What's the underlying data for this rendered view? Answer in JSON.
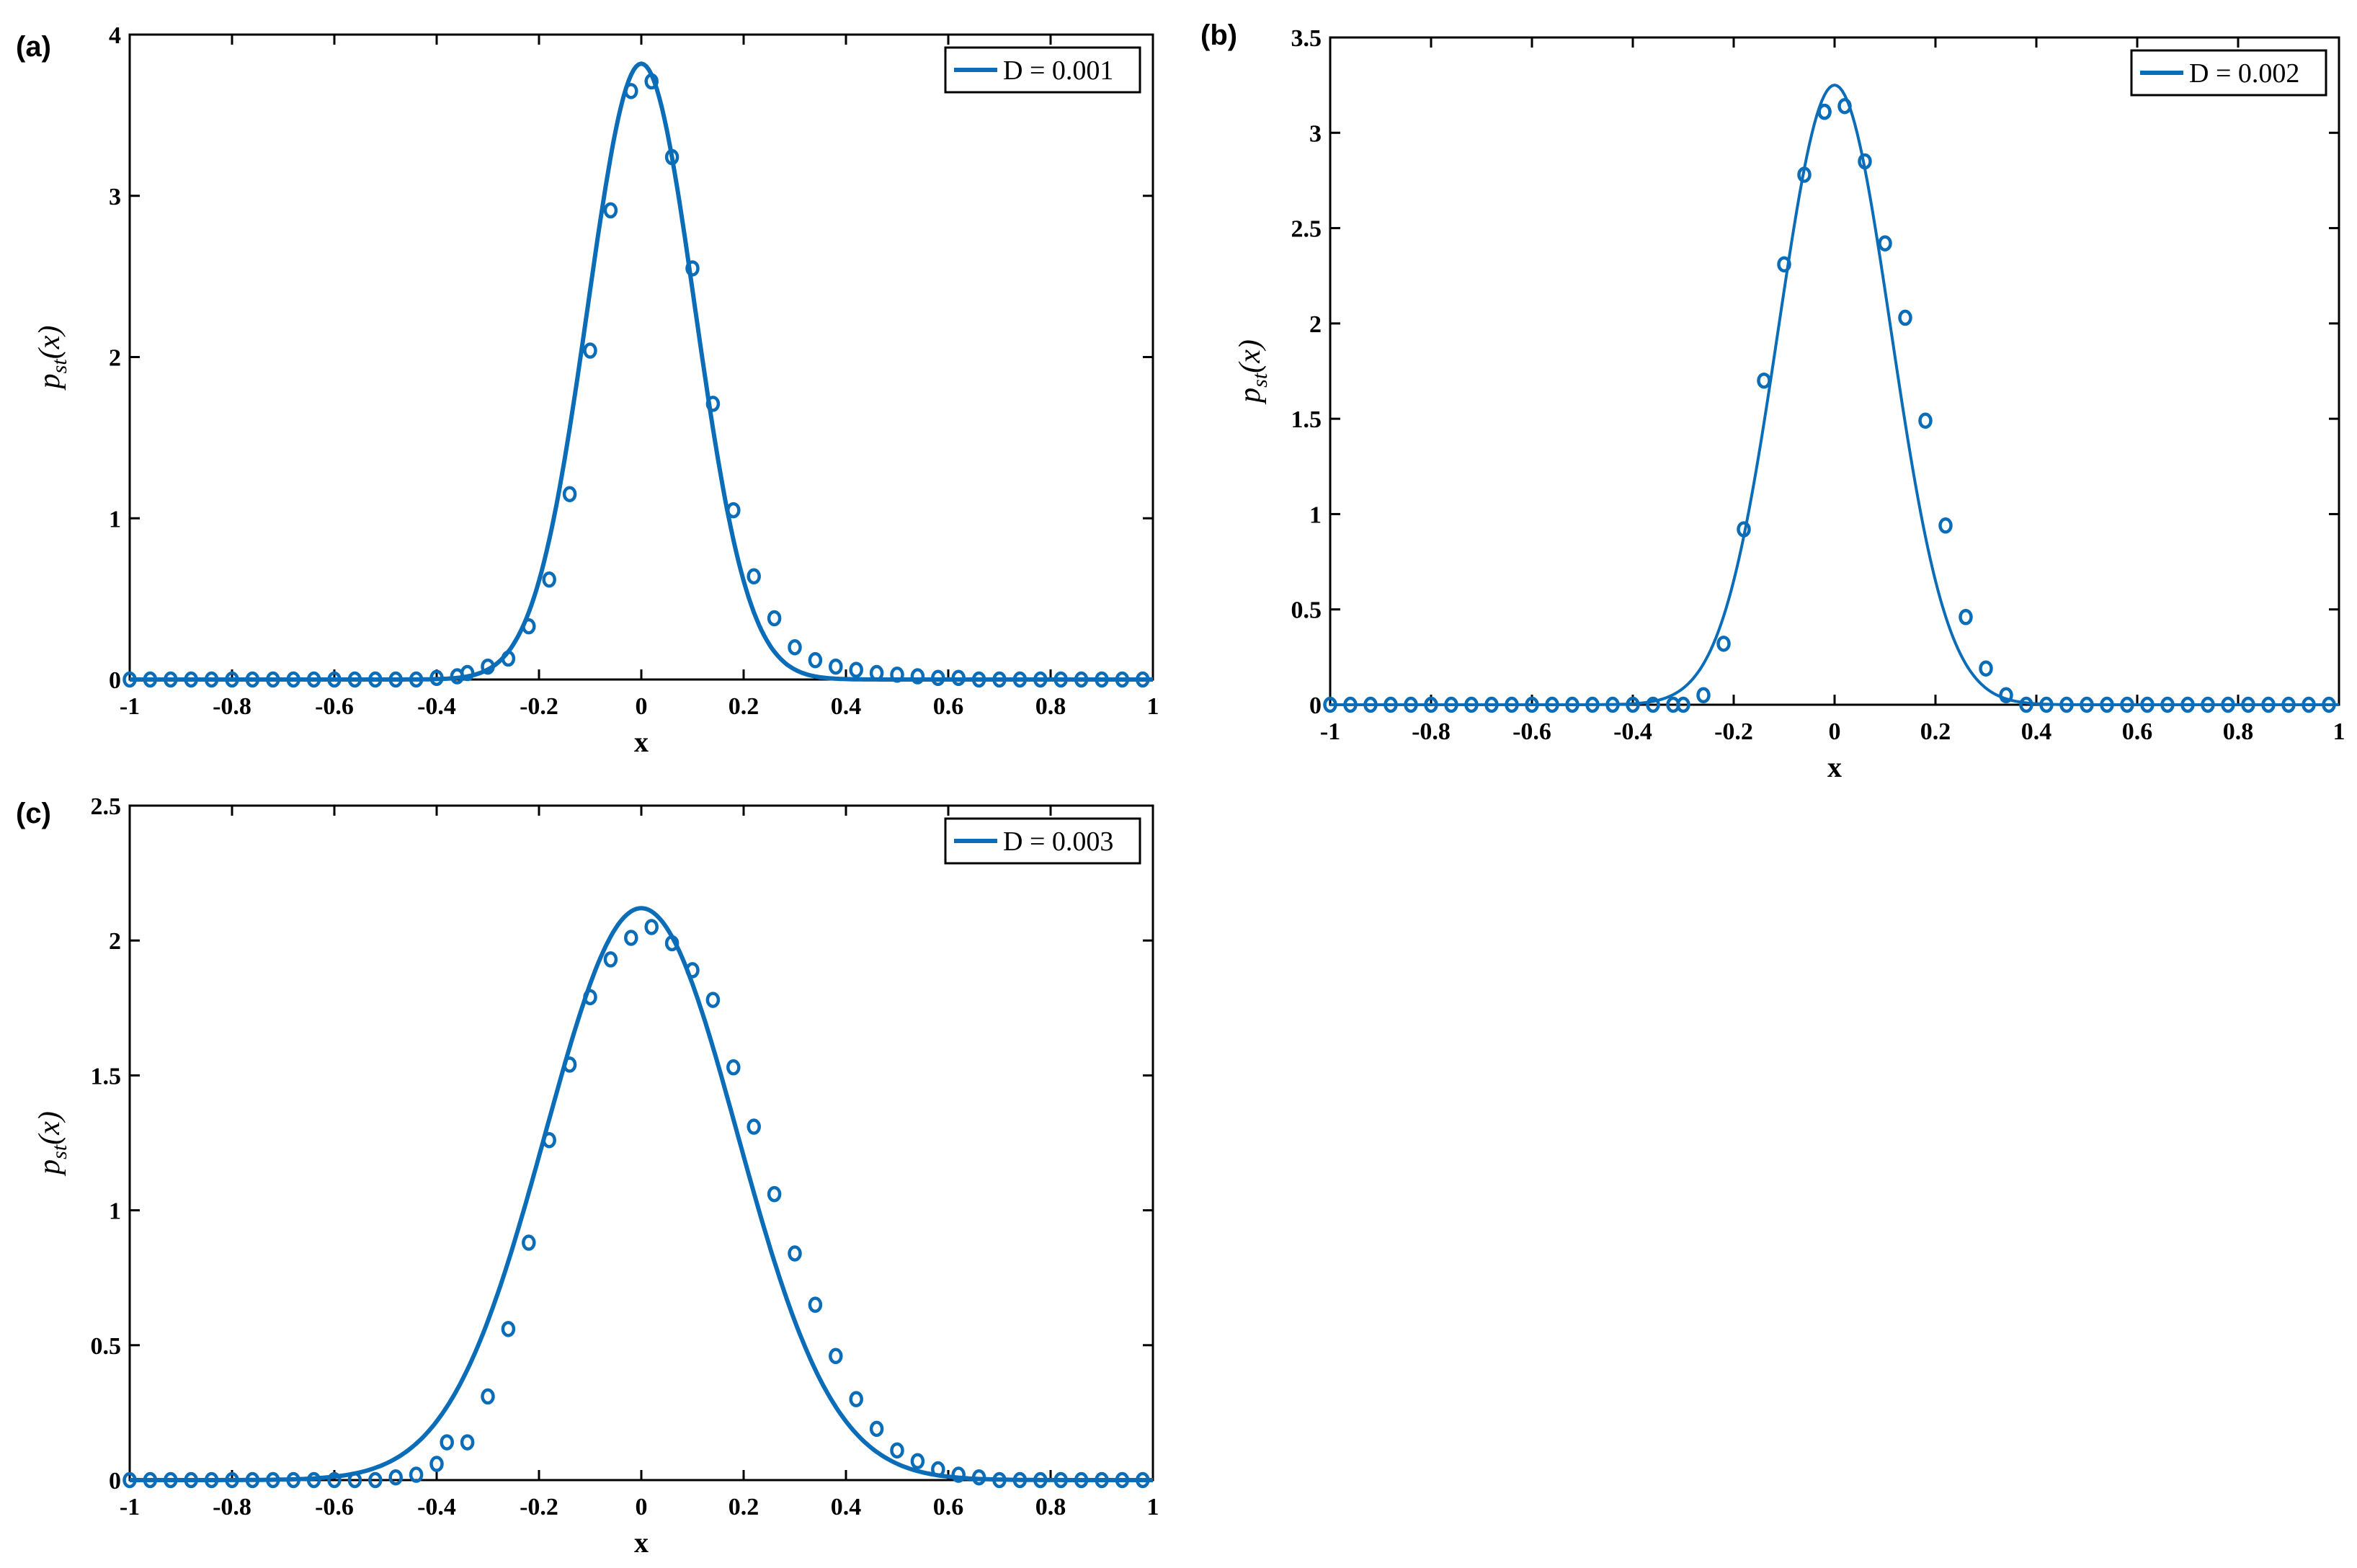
{
  "chart_data": [
    {
      "panel": "(a)",
      "type": "line",
      "xlabel": "x",
      "ylabel_main": "p",
      "ylabel_sub": "st",
      "ylabel_rest": "(x)",
      "xlim": [
        -1,
        1
      ],
      "ylim": [
        0,
        4
      ],
      "xticks": [
        "-1",
        "-0.8",
        "-0.6",
        "-0.4",
        "-0.2",
        "0",
        "0.2",
        "0.4",
        "0.6",
        "0.8",
        "1"
      ],
      "yticks": [
        "0",
        "1",
        "2",
        "3",
        "4"
      ],
      "legend": "D = 0.001",
      "legend_position": "top-right",
      "color": "#0b6cb8",
      "series": [
        {
          "kind": "curve",
          "center": 0.0,
          "sigma": 0.1045,
          "peak": 3.82
        },
        {
          "kind": "markers",
          "x": [
            -1.0,
            -0.96,
            -0.92,
            -0.88,
            -0.84,
            -0.8,
            -0.76,
            -0.72,
            -0.68,
            -0.64,
            -0.6,
            -0.56,
            -0.52,
            -0.48,
            -0.44,
            -0.4,
            -0.36,
            -0.34,
            -0.3,
            -0.26,
            -0.22,
            -0.18,
            -0.14,
            -0.1,
            -0.06,
            -0.02,
            0.02,
            0.06,
            0.1,
            0.14,
            0.18,
            0.22,
            0.26,
            0.3,
            0.34,
            0.38,
            0.42,
            0.46,
            0.5,
            0.54,
            0.58,
            0.62,
            0.66,
            0.7,
            0.74,
            0.78,
            0.82,
            0.86,
            0.9,
            0.94,
            0.98
          ],
          "y": [
            0.0,
            0.0,
            0.0,
            0.0,
            0.0,
            0.0,
            0.0,
            0.0,
            0.0,
            0.0,
            0.0,
            0.0,
            0.0,
            0.0,
            0.0,
            0.01,
            0.02,
            0.04,
            0.08,
            0.13,
            0.33,
            0.62,
            1.15,
            2.04,
            2.91,
            3.65,
            3.71,
            3.24,
            2.55,
            1.71,
            1.05,
            0.64,
            0.38,
            0.2,
            0.12,
            0.08,
            0.06,
            0.04,
            0.03,
            0.02,
            0.01,
            0.01,
            0.0,
            0.0,
            0.0,
            0.0,
            0.0,
            0.0,
            0.0,
            0.0,
            0.0
          ]
        }
      ]
    },
    {
      "panel": "(b)",
      "type": "line",
      "xlabel": "x",
      "ylabel_main": "p",
      "ylabel_sub": "st",
      "ylabel_rest": "(x)",
      "xlim": [
        -1,
        1
      ],
      "ylim": [
        0,
        3.5
      ],
      "xticks": [
        "-1",
        "-0.8",
        "-0.6",
        "-0.4",
        "-0.2",
        "0",
        "0.2",
        "0.4",
        "0.6",
        "0.8",
        "1"
      ],
      "yticks": [
        "0",
        "0.5",
        "1",
        "1.5",
        "2",
        "2.5",
        "3",
        "3.5"
      ],
      "legend": "D = 0.002",
      "legend_position": "top-right",
      "color": "#0b6cb8",
      "series": [
        {
          "kind": "curve",
          "center": 0.0,
          "sigma": 0.1115,
          "peak": 3.25
        },
        {
          "kind": "markers",
          "x": [
            -1.0,
            -0.96,
            -0.92,
            -0.88,
            -0.84,
            -0.8,
            -0.76,
            -0.72,
            -0.68,
            -0.64,
            -0.6,
            -0.56,
            -0.52,
            -0.48,
            -0.44,
            -0.4,
            -0.36,
            -0.32,
            -0.3,
            -0.26,
            -0.22,
            -0.18,
            -0.14,
            -0.1,
            -0.06,
            -0.02,
            -0.02,
            0.02,
            0.06,
            0.1,
            0.14,
            0.18,
            0.22,
            0.26,
            0.3,
            0.34,
            0.38,
            0.42,
            0.46,
            0.5,
            0.54,
            0.58,
            0.62,
            0.66,
            0.7,
            0.74,
            0.78,
            0.82,
            0.86,
            0.9,
            0.94,
            0.98
          ],
          "y": [
            0.0,
            0.0,
            0.0,
            0.0,
            0.0,
            0.0,
            0.0,
            0.0,
            0.0,
            0.0,
            0.0,
            0.0,
            0.0,
            0.0,
            0.0,
            0.0,
            0.0,
            0.0,
            0.0,
            0.05,
            0.32,
            0.92,
            1.7,
            2.31,
            2.78,
            3.11,
            3.11,
            3.14,
            2.85,
            2.42,
            2.03,
            1.49,
            0.94,
            0.46,
            0.19,
            0.05,
            0.0,
            0.0,
            0.0,
            0.0,
            0.0,
            0.0,
            0.0,
            0.0,
            0.0,
            0.0,
            0.0,
            0.0,
            0.0,
            0.0,
            0.0,
            0.0
          ]
        }
      ]
    },
    {
      "panel": "(c)",
      "type": "line",
      "xlabel": "x",
      "ylabel_main": "p",
      "ylabel_sub": "st",
      "ylabel_rest": "(x)",
      "xlim": [
        -1,
        1
      ],
      "ylim": [
        0,
        2.5
      ],
      "xticks": [
        "-1",
        "-0.8",
        "-0.6",
        "-0.4",
        "-0.2",
        "0",
        "0.2",
        "0.4",
        "0.6",
        "0.8",
        "1"
      ],
      "yticks": [
        "0",
        "0.5",
        "1",
        "1.5",
        "2",
        "2.5"
      ],
      "legend": "D = 0.003",
      "legend_position": "top-right",
      "color": "#0b6cb8",
      "series": [
        {
          "kind": "curve",
          "center": 0.0,
          "sigma": 0.1875,
          "peak": 2.12
        },
        {
          "kind": "markers",
          "x": [
            -1.0,
            -0.96,
            -0.92,
            -0.88,
            -0.84,
            -0.8,
            -0.76,
            -0.72,
            -0.68,
            -0.64,
            -0.6,
            -0.56,
            -0.52,
            -0.48,
            -0.44,
            -0.4,
            -0.38,
            -0.34,
            -0.3,
            -0.26,
            -0.22,
            -0.18,
            -0.14,
            -0.1,
            -0.06,
            -0.02,
            0.02,
            0.06,
            0.1,
            0.14,
            0.18,
            0.22,
            0.26,
            0.3,
            0.34,
            0.38,
            0.42,
            0.46,
            0.5,
            0.54,
            0.58,
            0.62,
            0.66,
            0.7,
            0.74,
            0.78,
            0.82,
            0.86,
            0.9,
            0.94,
            0.98
          ],
          "y": [
            0.0,
            0.0,
            0.0,
            0.0,
            0.0,
            0.0,
            0.0,
            0.0,
            0.0,
            0.0,
            0.0,
            0.0,
            0.0,
            0.01,
            0.02,
            0.06,
            0.14,
            0.14,
            0.31,
            0.56,
            0.88,
            1.26,
            1.54,
            1.79,
            1.93,
            2.01,
            2.05,
            1.99,
            1.89,
            1.78,
            1.53,
            1.31,
            1.06,
            0.84,
            0.65,
            0.46,
            0.3,
            0.19,
            0.11,
            0.07,
            0.04,
            0.02,
            0.01,
            0.0,
            0.0,
            0.0,
            0.0,
            0.0,
            0.0,
            0.0,
            0.0
          ]
        }
      ]
    }
  ]
}
